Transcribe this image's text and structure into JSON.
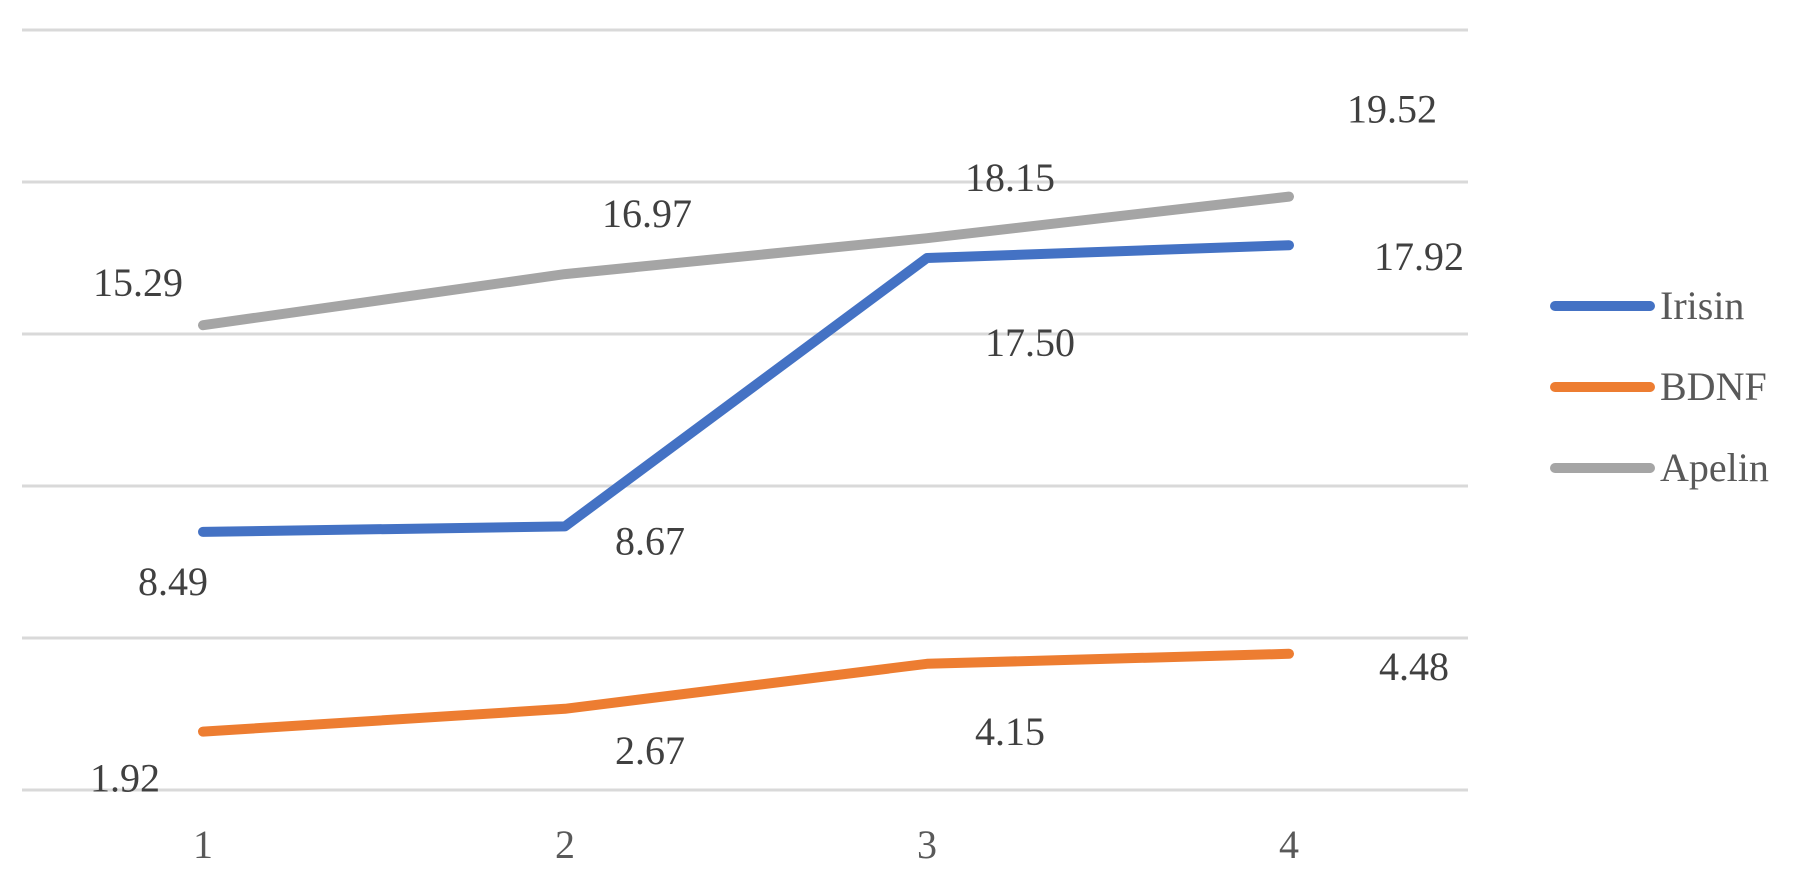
{
  "chart_data": {
    "type": "line",
    "title": "",
    "xlabel": "",
    "ylabel": "",
    "categories": [
      "1",
      "2",
      "3",
      "4"
    ],
    "ylim": [
      0,
      25
    ],
    "y_gridline_step": 5,
    "y_tick_labels_shown": false,
    "grid": true,
    "legend_position": "right",
    "series": [
      {
        "name": "Irisin",
        "color": "#4472C4",
        "values": [
          8.49,
          8.67,
          17.5,
          17.92
        ],
        "labels": [
          "8.49",
          "8.67",
          "17.50",
          "17.92"
        ]
      },
      {
        "name": "BDNF",
        "color": "#ED7D31",
        "values": [
          1.92,
          2.67,
          4.15,
          4.48
        ],
        "labels": [
          "1.92",
          "2.67",
          "4.15",
          "4.48"
        ]
      },
      {
        "name": "Apelin",
        "color": "#A5A5A5",
        "values": [
          15.29,
          16.97,
          18.15,
          19.52
        ],
        "labels": [
          "15.29",
          "16.97",
          "18.15",
          "19.52"
        ]
      }
    ]
  }
}
